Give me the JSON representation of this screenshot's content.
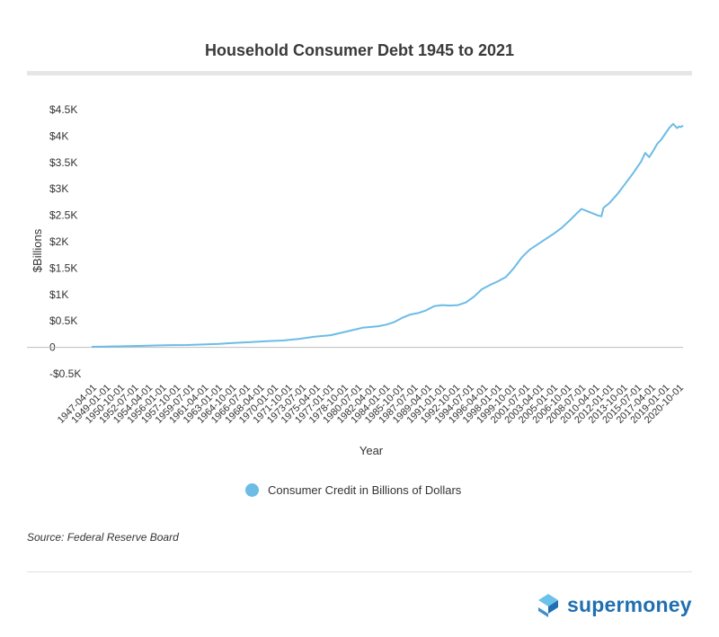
{
  "header": {
    "title": "Household Consumer Debt 1945 to 2021"
  },
  "source": "Source: Federal Reserve Board",
  "brand": {
    "name": "supermoney",
    "color": "#1f6fb2"
  },
  "chart_data": {
    "type": "line",
    "title": "Household Consumer Debt 1945 to 2021",
    "xlabel": "Year",
    "ylabel": "$Billions",
    "y_ticks": [
      {
        "value": -500,
        "label": "-$0.5K"
      },
      {
        "value": 0,
        "label": "0"
      },
      {
        "value": 500,
        "label": "$0.5K"
      },
      {
        "value": 1000,
        "label": "$1K"
      },
      {
        "value": 1500,
        "label": "$1.5K"
      },
      {
        "value": 2000,
        "label": "$2K"
      },
      {
        "value": 2500,
        "label": "$2.5K"
      },
      {
        "value": 3000,
        "label": "$3K"
      },
      {
        "value": 3500,
        "label": "$3.5K"
      },
      {
        "value": 4000,
        "label": "$4K"
      },
      {
        "value": 4500,
        "label": "$4.5K"
      }
    ],
    "ylim": [
      -500,
      4500
    ],
    "x_ticks": [
      "1947-04-01",
      "1949-01-01",
      "1950-10-01",
      "1952-07-01",
      "1954-04-01",
      "1956-01-01",
      "1957-10-01",
      "1959-07-01",
      "1961-04-01",
      "1963-01-01",
      "1964-10-01",
      "1966-07-01",
      "1968-04-01",
      "1970-01-01",
      "1971-10-01",
      "1973-07-01",
      "1975-04-01",
      "1977-01-01",
      "1978-10-01",
      "1980-07-01",
      "1982-04-01",
      "1984-01-01",
      "1985-10-01",
      "1987-07-01",
      "1989-04-01",
      "1991-01-01",
      "1992-10-01",
      "1994-07-01",
      "1996-04-01",
      "1998-01-01",
      "1999-10-01",
      "2001-07-01",
      "2003-04-01",
      "2005-01-01",
      "2006-10-01",
      "2008-07-01",
      "2010-04-01",
      "2012-01-01",
      "2013-10-01",
      "2015-07-01",
      "2017-04-01",
      "2019-01-01",
      "2020-10-01"
    ],
    "grid": false,
    "legend_position": "bottom",
    "series": [
      {
        "name": "Consumer Credit in Billions of Dollars",
        "color": "#6cbce6",
        "points": [
          [
            "1947-01-01",
            10
          ],
          [
            "1949-01-01",
            15
          ],
          [
            "1951-01-01",
            20
          ],
          [
            "1953-01-01",
            28
          ],
          [
            "1955-01-01",
            35
          ],
          [
            "1957-01-01",
            42
          ],
          [
            "1959-01-01",
            45
          ],
          [
            "1961-01-01",
            55
          ],
          [
            "1963-01-01",
            65
          ],
          [
            "1965-01-01",
            85
          ],
          [
            "1967-01-01",
            100
          ],
          [
            "1969-01-01",
            115
          ],
          [
            "1971-01-01",
            130
          ],
          [
            "1973-01-01",
            160
          ],
          [
            "1975-01-01",
            200
          ],
          [
            "1977-01-01",
            230
          ],
          [
            "1979-01-01",
            300
          ],
          [
            "1981-01-01",
            370
          ],
          [
            "1983-01-01",
            400
          ],
          [
            "1984-01-01",
            430
          ],
          [
            "1985-01-01",
            480
          ],
          [
            "1986-01-01",
            560
          ],
          [
            "1987-01-01",
            620
          ],
          [
            "1988-01-01",
            650
          ],
          [
            "1989-01-01",
            700
          ],
          [
            "1990-01-01",
            780
          ],
          [
            "1991-01-01",
            800
          ],
          [
            "1992-01-01",
            790
          ],
          [
            "1993-01-01",
            800
          ],
          [
            "1994-01-01",
            850
          ],
          [
            "1995-01-01",
            960
          ],
          [
            "1996-01-01",
            1100
          ],
          [
            "1997-01-01",
            1180
          ],
          [
            "1998-01-01",
            1250
          ],
          [
            "1999-01-01",
            1330
          ],
          [
            "2000-01-01",
            1500
          ],
          [
            "2001-01-01",
            1700
          ],
          [
            "2002-01-01",
            1850
          ],
          [
            "2003-01-01",
            1950
          ],
          [
            "2004-01-01",
            2050
          ],
          [
            "2005-01-01",
            2150
          ],
          [
            "2006-01-01",
            2260
          ],
          [
            "2007-01-01",
            2400
          ],
          [
            "2008-01-01",
            2550
          ],
          [
            "2008-07-01",
            2620
          ],
          [
            "2009-07-01",
            2560
          ],
          [
            "2010-07-01",
            2500
          ],
          [
            "2011-01-01",
            2480
          ],
          [
            "2011-04-01",
            2640
          ],
          [
            "2012-01-01",
            2730
          ],
          [
            "2013-01-01",
            2900
          ],
          [
            "2014-01-01",
            3100
          ],
          [
            "2015-01-01",
            3300
          ],
          [
            "2016-01-01",
            3520
          ],
          [
            "2016-07-01",
            3680
          ],
          [
            "2017-01-01",
            3600
          ],
          [
            "2017-07-01",
            3720
          ],
          [
            "2018-01-01",
            3850
          ],
          [
            "2018-07-01",
            3930
          ],
          [
            "2019-01-01",
            4040
          ],
          [
            "2019-07-01",
            4150
          ],
          [
            "2020-01-01",
            4230
          ],
          [
            "2020-07-01",
            4150
          ],
          [
            "2020-10-01",
            4180
          ],
          [
            "2021-01-01",
            4170
          ],
          [
            "2021-04-01",
            4200
          ]
        ]
      }
    ]
  }
}
